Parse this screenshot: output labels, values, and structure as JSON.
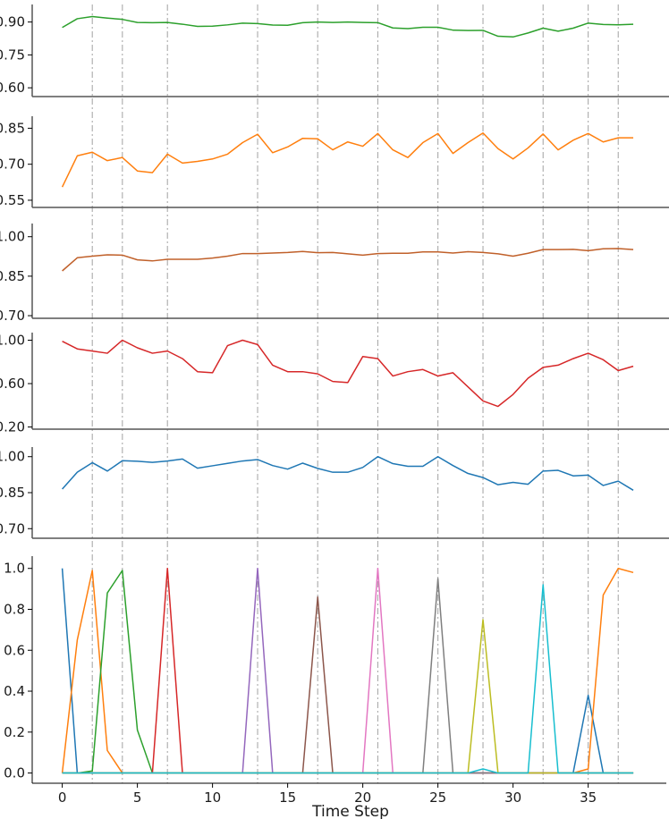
{
  "chart_data": [
    {
      "type": "line",
      "color": "#2ca02c",
      "yticks": [
        0.6,
        0.75,
        0.9
      ],
      "ytick_labels": [
        "0.60",
        "0.75",
        "0.90"
      ],
      "ylim": [
        0.56,
        0.98
      ],
      "x": [
        0,
        1,
        2,
        3,
        4,
        5,
        6,
        7,
        8,
        9,
        10,
        11,
        12,
        13,
        14,
        15,
        16,
        17,
        18,
        19,
        20,
        21,
        22,
        23,
        24,
        25,
        26,
        27,
        28,
        29,
        30,
        31,
        32,
        33,
        34,
        35,
        36,
        37,
        38
      ],
      "values": [
        0.875,
        0.915,
        0.925,
        0.918,
        0.912,
        0.898,
        0.897,
        0.898,
        0.89,
        0.88,
        0.881,
        0.887,
        0.895,
        0.893,
        0.886,
        0.885,
        0.897,
        0.9,
        0.898,
        0.9,
        0.898,
        0.897,
        0.873,
        0.87,
        0.876,
        0.876,
        0.863,
        0.861,
        0.862,
        0.835,
        0.832,
        0.85,
        0.872,
        0.858,
        0.872,
        0.895,
        0.889,
        0.887,
        0.89
      ]
    },
    {
      "type": "line",
      "color": "#ff7f0e",
      "yticks": [
        0.55,
        0.7,
        0.85
      ],
      "ytick_labels": [
        "0.55",
        "0.70",
        "0.85"
      ],
      "ylim": [
        0.52,
        0.9
      ],
      "x": [
        0,
        1,
        2,
        3,
        4,
        5,
        6,
        7,
        8,
        9,
        10,
        11,
        12,
        13,
        14,
        15,
        16,
        17,
        18,
        19,
        20,
        21,
        22,
        23,
        24,
        25,
        26,
        27,
        28,
        29,
        30,
        31,
        32,
        33,
        34,
        35,
        36,
        37,
        38
      ],
      "values": [
        0.605,
        0.735,
        0.75,
        0.715,
        0.728,
        0.672,
        0.665,
        0.742,
        0.705,
        0.712,
        0.722,
        0.742,
        0.79,
        0.825,
        0.748,
        0.772,
        0.808,
        0.806,
        0.76,
        0.793,
        0.775,
        0.828,
        0.76,
        0.728,
        0.79,
        0.828,
        0.745,
        0.79,
        0.83,
        0.765,
        0.722,
        0.768,
        0.826,
        0.76,
        0.8,
        0.828,
        0.793,
        0.81,
        0.81
      ]
    },
    {
      "type": "line",
      "color": "#c0602a",
      "yticks": [
        0.7,
        0.85,
        1.0
      ],
      "ytick_labels": [
        "0.70",
        "0.85",
        "1.00"
      ],
      "ylim": [
        0.69,
        1.05
      ],
      "x": [
        0,
        1,
        2,
        3,
        4,
        5,
        6,
        7,
        8,
        9,
        10,
        11,
        12,
        13,
        14,
        15,
        16,
        17,
        18,
        19,
        20,
        21,
        22,
        23,
        24,
        25,
        26,
        27,
        28,
        29,
        30,
        31,
        32,
        33,
        34,
        35,
        36,
        37,
        38
      ],
      "values": [
        0.87,
        0.92,
        0.926,
        0.931,
        0.93,
        0.912,
        0.908,
        0.914,
        0.914,
        0.914,
        0.919,
        0.926,
        0.936,
        0.936,
        0.938,
        0.94,
        0.944,
        0.939,
        0.94,
        0.935,
        0.93,
        0.936,
        0.937,
        0.937,
        0.942,
        0.942,
        0.938,
        0.943,
        0.94,
        0.935,
        0.926,
        0.937,
        0.951,
        0.951,
        0.952,
        0.947,
        0.954,
        0.955,
        0.951
      ]
    },
    {
      "type": "line",
      "color": "#d62728",
      "yticks": [
        0.2,
        0.6,
        1.0
      ],
      "ytick_labels": [
        "0.20",
        "0.60",
        "1.00"
      ],
      "ylim": [
        0.18,
        1.07
      ],
      "x": [
        0,
        1,
        2,
        3,
        4,
        5,
        6,
        7,
        8,
        9,
        10,
        11,
        12,
        13,
        14,
        15,
        16,
        17,
        18,
        19,
        20,
        21,
        22,
        23,
        24,
        25,
        26,
        27,
        28,
        29,
        30,
        31,
        32,
        33,
        34,
        35,
        36,
        37,
        38
      ],
      "values": [
        0.99,
        0.92,
        0.9,
        0.88,
        1.0,
        0.93,
        0.88,
        0.9,
        0.83,
        0.71,
        0.7,
        0.95,
        1.0,
        0.96,
        0.77,
        0.71,
        0.71,
        0.69,
        0.62,
        0.61,
        0.85,
        0.83,
        0.67,
        0.71,
        0.73,
        0.67,
        0.7,
        0.57,
        0.44,
        0.39,
        0.5,
        0.65,
        0.75,
        0.77,
        0.83,
        0.88,
        0.82,
        0.72,
        0.76
      ]
    },
    {
      "type": "line",
      "color": "#1f77b4",
      "yticks": [
        0.7,
        0.85,
        1.0
      ],
      "ytick_labels": [
        "0.70",
        "0.85",
        "1.00"
      ],
      "ylim": [
        0.66,
        1.04
      ],
      "x": [
        0,
        1,
        2,
        3,
        4,
        5,
        6,
        7,
        8,
        9,
        10,
        11,
        12,
        13,
        14,
        15,
        16,
        17,
        18,
        19,
        20,
        21,
        22,
        23,
        24,
        25,
        26,
        27,
        28,
        29,
        30,
        31,
        32,
        33,
        34,
        35,
        36,
        37,
        38
      ],
      "values": [
        0.865,
        0.935,
        0.975,
        0.94,
        0.983,
        0.981,
        0.976,
        0.982,
        0.99,
        0.952,
        0.962,
        0.972,
        0.982,
        0.988,
        0.963,
        0.948,
        0.973,
        0.951,
        0.935,
        0.935,
        0.955,
        1.0,
        0.971,
        0.96,
        0.96,
        1.0,
        0.963,
        0.93,
        0.913,
        0.883,
        0.893,
        0.885,
        0.94,
        0.943,
        0.92,
        0.923,
        0.88,
        0.898,
        0.86
      ]
    },
    {
      "type": "line",
      "ylim": [
        -0.05,
        1.06
      ],
      "yticks": [
        0.0,
        0.2,
        0.4,
        0.6,
        0.8,
        1.0
      ],
      "ytick_labels": [
        "0.0",
        "0.2",
        "0.4",
        "0.6",
        "0.8",
        "1.0"
      ],
      "xticks": [
        0,
        5,
        10,
        15,
        20,
        25,
        30,
        35
      ],
      "xtick_labels": [
        "0",
        "5",
        "10",
        "15",
        "20",
        "25",
        "30",
        "35"
      ],
      "xlim": [
        -2,
        40.2
      ],
      "xlabel": "Time Step",
      "x": [
        0,
        1,
        2,
        3,
        4,
        5,
        6,
        7,
        8,
        9,
        10,
        11,
        12,
        13,
        14,
        15,
        16,
        17,
        18,
        19,
        20,
        21,
        22,
        23,
        24,
        25,
        26,
        27,
        28,
        29,
        30,
        31,
        32,
        33,
        34,
        35,
        36,
        37,
        38
      ],
      "series": [
        {
          "color": "#1f77b4",
          "values": [
            1.0,
            0,
            0,
            0,
            0,
            0,
            0,
            0,
            0,
            0,
            0,
            0,
            0,
            0,
            0,
            0,
            0,
            0,
            0,
            0,
            0,
            0,
            0,
            0,
            0,
            0,
            0,
            0,
            0,
            0,
            0,
            0,
            0,
            0,
            0,
            0.38,
            0,
            0,
            0
          ]
        },
        {
          "color": "#ff7f0e",
          "values": [
            0,
            0.65,
            0.99,
            0.11,
            0,
            0,
            0,
            0,
            0,
            0,
            0,
            0,
            0,
            0,
            0,
            0,
            0,
            0,
            0,
            0,
            0,
            0,
            0,
            0,
            0,
            0,
            0,
            0,
            0,
            0,
            0,
            0,
            0,
            0,
            0,
            0.02,
            0.87,
            1.0,
            0.98
          ]
        },
        {
          "color": "#2ca02c",
          "values": [
            0,
            0,
            0.01,
            0.88,
            0.99,
            0.21,
            0,
            0,
            0,
            0,
            0,
            0,
            0,
            0,
            0,
            0,
            0,
            0,
            0,
            0,
            0,
            0,
            0,
            0,
            0,
            0,
            0,
            0,
            0,
            0,
            0,
            0,
            0,
            0,
            0,
            0,
            0,
            0,
            0
          ]
        },
        {
          "color": "#d62728",
          "values": [
            0,
            0,
            0,
            0,
            0,
            0,
            0,
            1.0,
            0,
            0,
            0,
            0,
            0,
            0,
            0,
            0,
            0,
            0,
            0,
            0,
            0,
            0,
            0,
            0,
            0,
            0,
            0,
            0,
            0,
            0,
            0,
            0,
            0,
            0,
            0,
            0,
            0,
            0,
            0
          ]
        },
        {
          "color": "#9467bd",
          "values": [
            0,
            0,
            0,
            0,
            0,
            0,
            0,
            0,
            0,
            0,
            0,
            0,
            0,
            1.0,
            0,
            0,
            0,
            0,
            0,
            0,
            0,
            0,
            0,
            0,
            0,
            0,
            0,
            0,
            0,
            0,
            0,
            0,
            0,
            0,
            0,
            0,
            0,
            0,
            0
          ]
        },
        {
          "color": "#8c564b",
          "values": [
            0,
            0,
            0,
            0,
            0,
            0,
            0,
            0,
            0,
            0,
            0,
            0,
            0,
            0,
            0,
            0,
            0,
            0.86,
            0,
            0,
            0,
            0,
            0,
            0,
            0,
            0,
            0,
            0,
            0,
            0,
            0,
            0,
            0,
            0,
            0,
            0,
            0,
            0,
            0
          ]
        },
        {
          "color": "#e377c2",
          "values": [
            0,
            0,
            0,
            0,
            0,
            0,
            0,
            0,
            0,
            0,
            0,
            0,
            0,
            0,
            0,
            0,
            0,
            0,
            0,
            0,
            0,
            1.0,
            0,
            0,
            0,
            0,
            0,
            0,
            0,
            0,
            0,
            0,
            0,
            0,
            0,
            0,
            0,
            0,
            0
          ]
        },
        {
          "color": "#7f7f7f",
          "values": [
            0,
            0,
            0,
            0,
            0,
            0,
            0,
            0,
            0,
            0,
            0,
            0,
            0,
            0,
            0,
            0,
            0,
            0,
            0,
            0,
            0,
            0,
            0,
            0,
            0,
            0.95,
            0,
            0,
            0,
            0,
            0,
            0,
            0,
            0,
            0,
            0,
            0,
            0,
            0
          ]
        },
        {
          "color": "#bcbd22",
          "values": [
            0,
            0,
            0,
            0,
            0,
            0,
            0,
            0,
            0,
            0,
            0,
            0,
            0,
            0,
            0,
            0,
            0,
            0,
            0,
            0,
            0,
            0,
            0,
            0,
            0,
            0,
            0,
            0,
            0.75,
            0,
            0,
            0,
            0,
            0,
            0,
            0,
            0,
            0,
            0
          ]
        },
        {
          "color": "#17becf",
          "values": [
            0,
            0,
            0,
            0,
            0,
            0,
            0,
            0,
            0,
            0,
            0,
            0,
            0,
            0,
            0,
            0,
            0,
            0,
            0,
            0,
            0,
            0,
            0,
            0,
            0,
            0,
            0,
            0,
            0.02,
            0,
            0,
            0,
            0.92,
            0,
            0,
            0,
            0,
            0,
            0
          ]
        }
      ]
    }
  ],
  "vlines": {
    "x": [
      2,
      4,
      7,
      13,
      17,
      21,
      25,
      28,
      32,
      35,
      37
    ],
    "color": "#aaaaaa"
  }
}
